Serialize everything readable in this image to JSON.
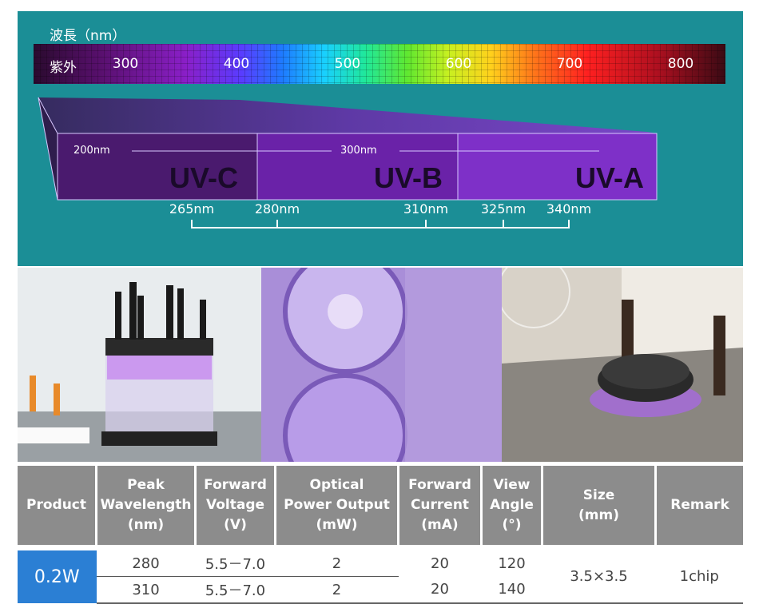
{
  "spectrum": {
    "title": "波長（nm）",
    "uv_label": "紫外",
    "ticks": [
      "300",
      "400",
      "500",
      "600",
      "700",
      "800"
    ]
  },
  "bands": {
    "scale_labels": [
      "200nm",
      "300nm"
    ],
    "names": [
      "UV-C",
      "UV-B",
      "UV-A"
    ],
    "markers": [
      "265nm",
      "280nm",
      "310nm",
      "325nm",
      "340nm"
    ]
  },
  "table": {
    "headers": [
      "Product",
      "Peak\nWavelength\n(nm)",
      "Forward\nVoltage\n(V)",
      "Optical\nPower Output\n(mW)",
      "Forward\nCurrent\n(mA)",
      "View\nAngle\n(°)",
      "Size\n(mm)",
      "Remark"
    ],
    "product": "0.2W",
    "rows": [
      [
        "280",
        "5.5－7.0",
        "2",
        "20",
        "120"
      ],
      [
        "310",
        "5.5－7.0",
        "2",
        "20",
        "140"
      ]
    ],
    "size": "3.5×3.5",
    "remark": "1chip"
  }
}
